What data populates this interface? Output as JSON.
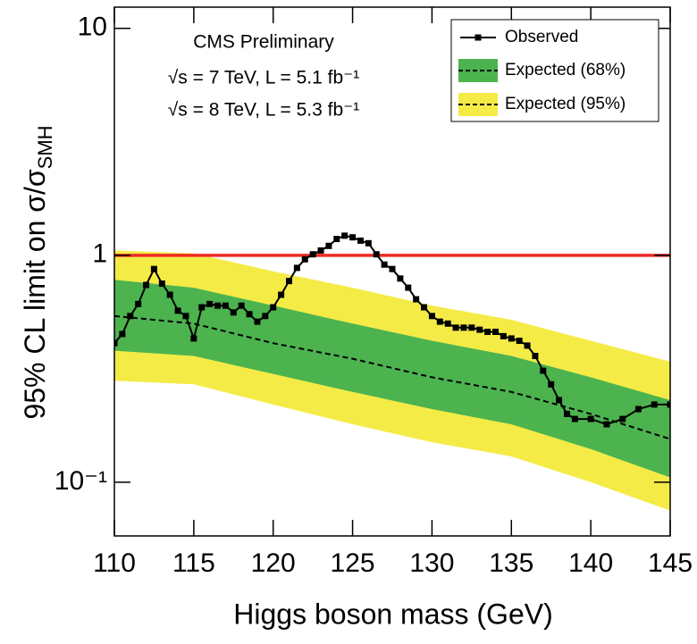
{
  "chart_data": {
    "type": "limit-bands",
    "xlabel": "Higgs boson mass (GeV)",
    "ylabel": {
      "text": "95% CL limit on σ/σ",
      "sub": "SMH"
    },
    "annotations": [
      "CMS Preliminary",
      "√s = 7 TeV, L = 5.1 fb⁻¹",
      "√s = 8 TeV, L = 5.3 fb⁻¹"
    ],
    "xlim": [
      110,
      145
    ],
    "xticks": [
      110,
      115,
      120,
      125,
      130,
      135,
      140,
      145
    ],
    "ylim": [
      0.058,
      12.4
    ],
    "log_y": true,
    "yticks": [
      {
        "value": 0.1,
        "label": "10⁻¹"
      },
      1,
      10
    ],
    "legend": "top-right",
    "reference_line": {
      "value": 1,
      "color": "#ee2a24"
    },
    "bands": [
      {
        "name": "Expected (95%)",
        "color": "#f4eb47",
        "x": [
          110,
          115,
          120,
          125,
          130,
          135,
          140,
          145
        ],
        "lower": [
          0.28,
          0.27,
          0.22,
          0.18,
          0.15,
          0.13,
          0.1,
          0.075
        ],
        "upper": [
          1.05,
          1.02,
          0.85,
          0.72,
          0.6,
          0.52,
          0.42,
          0.34
        ]
      },
      {
        "name": "Expected (68%)",
        "color": "#4cb34f",
        "x": [
          110,
          115,
          120,
          125,
          130,
          135,
          140,
          145
        ],
        "lower": [
          0.38,
          0.36,
          0.3,
          0.25,
          0.21,
          0.18,
          0.14,
          0.105
        ],
        "upper": [
          0.78,
          0.72,
          0.6,
          0.5,
          0.42,
          0.36,
          0.29,
          0.23
        ]
      }
    ],
    "expected": {
      "color": "#000000",
      "x": [
        110,
        115,
        120,
        125,
        130,
        135,
        140,
        145
      ],
      "values": [
        0.54,
        0.5,
        0.41,
        0.35,
        0.29,
        0.25,
        0.2,
        0.155
      ]
    },
    "series": [
      {
        "name": "Observed",
        "color": "#000000",
        "x": [
          110,
          110.5,
          111,
          111.5,
          112,
          112.5,
          113,
          113.5,
          114,
          114.5,
          115,
          115.5,
          116,
          116.5,
          117,
          117.5,
          118,
          118.5,
          119,
          119.5,
          120,
          120.5,
          121,
          121.5,
          122,
          122.5,
          123,
          123.5,
          124,
          124.5,
          125,
          125.5,
          126,
          126.5,
          127,
          127.5,
          128,
          128.5,
          129,
          129.5,
          130,
          130.5,
          131,
          131.5,
          132,
          132.5,
          133,
          133.5,
          134,
          134.5,
          135,
          135.5,
          136,
          136.5,
          137,
          137.5,
          138,
          138.5,
          139,
          140,
          141,
          142,
          143,
          144,
          145
        ],
        "values": [
          0.41,
          0.45,
          0.54,
          0.61,
          0.74,
          0.87,
          0.75,
          0.67,
          0.57,
          0.54,
          0.43,
          0.59,
          0.61,
          0.6,
          0.6,
          0.56,
          0.6,
          0.55,
          0.51,
          0.54,
          0.59,
          0.67,
          0.77,
          0.88,
          0.96,
          1.01,
          1.05,
          1.1,
          1.18,
          1.22,
          1.2,
          1.16,
          1.13,
          1.01,
          0.91,
          0.87,
          0.79,
          0.72,
          0.64,
          0.59,
          0.54,
          0.51,
          0.5,
          0.48,
          0.48,
          0.48,
          0.47,
          0.46,
          0.46,
          0.44,
          0.43,
          0.42,
          0.4,
          0.36,
          0.31,
          0.27,
          0.23,
          0.2,
          0.19,
          0.19,
          0.18,
          0.19,
          0.21,
          0.22,
          0.22
        ]
      }
    ]
  }
}
